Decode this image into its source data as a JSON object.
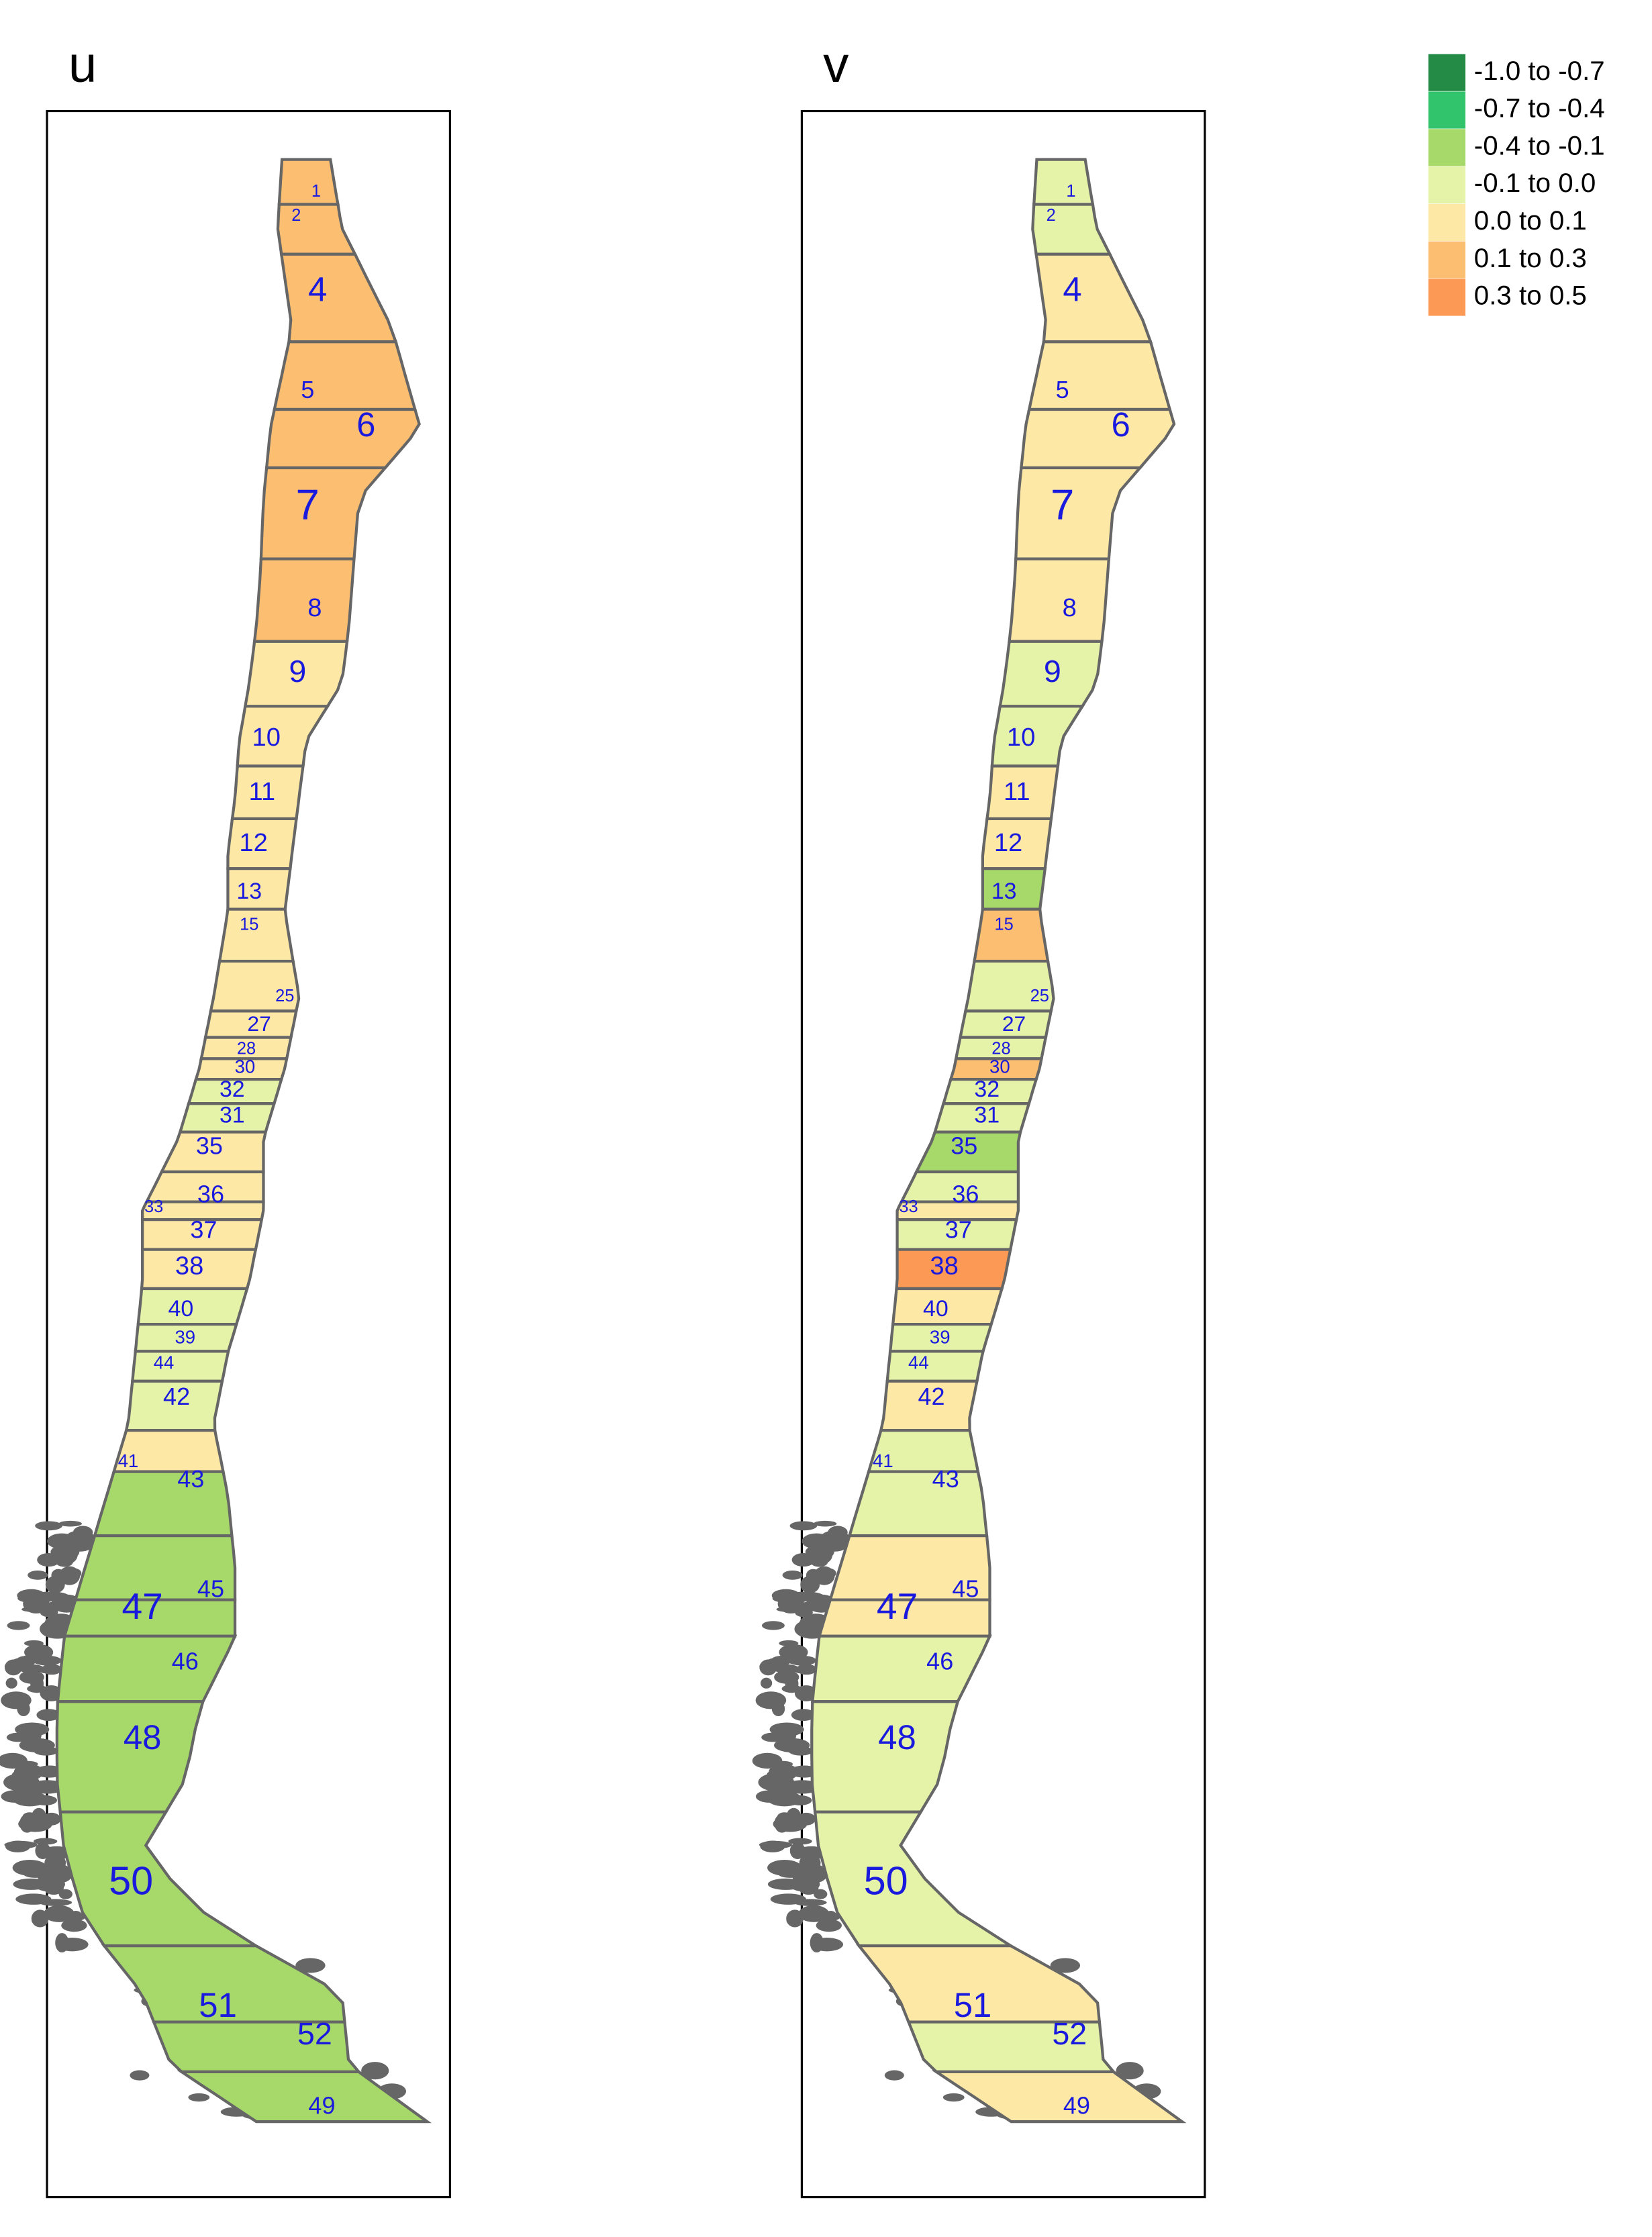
{
  "panels": [
    {
      "title": "u",
      "regions": [
        {
          "label": "1",
          "class": 5
        },
        {
          "label": "2",
          "class": 5
        },
        {
          "label": "4",
          "class": 5
        },
        {
          "label": "5",
          "class": 5
        },
        {
          "label": "6",
          "class": 5
        },
        {
          "label": "7",
          "class": 5
        },
        {
          "label": "8",
          "class": 5
        },
        {
          "label": "9",
          "class": 4
        },
        {
          "label": "10",
          "class": 4
        },
        {
          "label": "11",
          "class": 4
        },
        {
          "label": "12",
          "class": 4
        },
        {
          "label": "13",
          "class": 4
        },
        {
          "label": "15",
          "class": 4
        },
        {
          "label": "25",
          "class": 4
        },
        {
          "label": "27",
          "class": 4
        },
        {
          "label": "28",
          "class": 4
        },
        {
          "label": "30",
          "class": 4
        },
        {
          "label": "32",
          "class": 3
        },
        {
          "label": "31",
          "class": 3
        },
        {
          "label": "35",
          "class": 4
        },
        {
          "label": "36",
          "class": 4
        },
        {
          "label": "33",
          "class": 4
        },
        {
          "label": "37",
          "class": 4
        },
        {
          "label": "38",
          "class": 4
        },
        {
          "label": "40",
          "class": 3
        },
        {
          "label": "39",
          "class": 3
        },
        {
          "label": "44",
          "class": 3
        },
        {
          "label": "42",
          "class": 3
        },
        {
          "label": "41",
          "class": 4
        },
        {
          "label": "43",
          "class": 2
        },
        {
          "label": "45",
          "class": 2
        },
        {
          "label": "47",
          "class": 2
        },
        {
          "label": "46",
          "class": 2
        },
        {
          "label": "48",
          "class": 2
        },
        {
          "label": "50",
          "class": 2
        },
        {
          "label": "51",
          "class": 2
        },
        {
          "label": "52",
          "class": 2
        },
        {
          "label": "49",
          "class": 2
        }
      ]
    },
    {
      "title": "v",
      "regions": [
        {
          "label": "1",
          "class": 3
        },
        {
          "label": "2",
          "class": 3
        },
        {
          "label": "4",
          "class": 4
        },
        {
          "label": "5",
          "class": 4
        },
        {
          "label": "6",
          "class": 4
        },
        {
          "label": "7",
          "class": 4
        },
        {
          "label": "8",
          "class": 4
        },
        {
          "label": "9",
          "class": 3
        },
        {
          "label": "10",
          "class": 3
        },
        {
          "label": "11",
          "class": 4
        },
        {
          "label": "12",
          "class": 4
        },
        {
          "label": "13",
          "class": 2
        },
        {
          "label": "15",
          "class": 5
        },
        {
          "label": "25",
          "class": 3
        },
        {
          "label": "27",
          "class": 3
        },
        {
          "label": "28",
          "class": 3
        },
        {
          "label": "30",
          "class": 5
        },
        {
          "label": "32",
          "class": 3
        },
        {
          "label": "31",
          "class": 3
        },
        {
          "label": "35",
          "class": 2
        },
        {
          "label": "36",
          "class": 3
        },
        {
          "label": "33",
          "class": 4
        },
        {
          "label": "37",
          "class": 3
        },
        {
          "label": "38",
          "class": 6
        },
        {
          "label": "40",
          "class": 4
        },
        {
          "label": "39",
          "class": 3
        },
        {
          "label": "44",
          "class": 3
        },
        {
          "label": "42",
          "class": 4
        },
        {
          "label": "41",
          "class": 3
        },
        {
          "label": "43",
          "class": 3
        },
        {
          "label": "45",
          "class": 4
        },
        {
          "label": "47",
          "class": 4
        },
        {
          "label": "46",
          "class": 3
        },
        {
          "label": "48",
          "class": 3
        },
        {
          "label": "50",
          "class": 3
        },
        {
          "label": "51",
          "class": 4
        },
        {
          "label": "52",
          "class": 3
        },
        {
          "label": "49",
          "class": 4
        }
      ]
    }
  ],
  "legend": {
    "entries": [
      {
        "label": "-1.0 to -0.7",
        "color": "#238b45"
      },
      {
        "label": "-0.7 to -0.4",
        "color": "#31c46c"
      },
      {
        "label": "-0.4 to -0.1",
        "color": "#a6d96a"
      },
      {
        "label": "-0.1 to 0.0",
        "color": "#e4f3a8"
      },
      {
        "label": "0.0 to 0.1",
        "color": "#fde8a6"
      },
      {
        "label": "0.1 to 0.3",
        "color": "#fcbf72"
      },
      {
        "label": "0.3 to 0.5",
        "color": "#fc9a55"
      }
    ]
  }
}
